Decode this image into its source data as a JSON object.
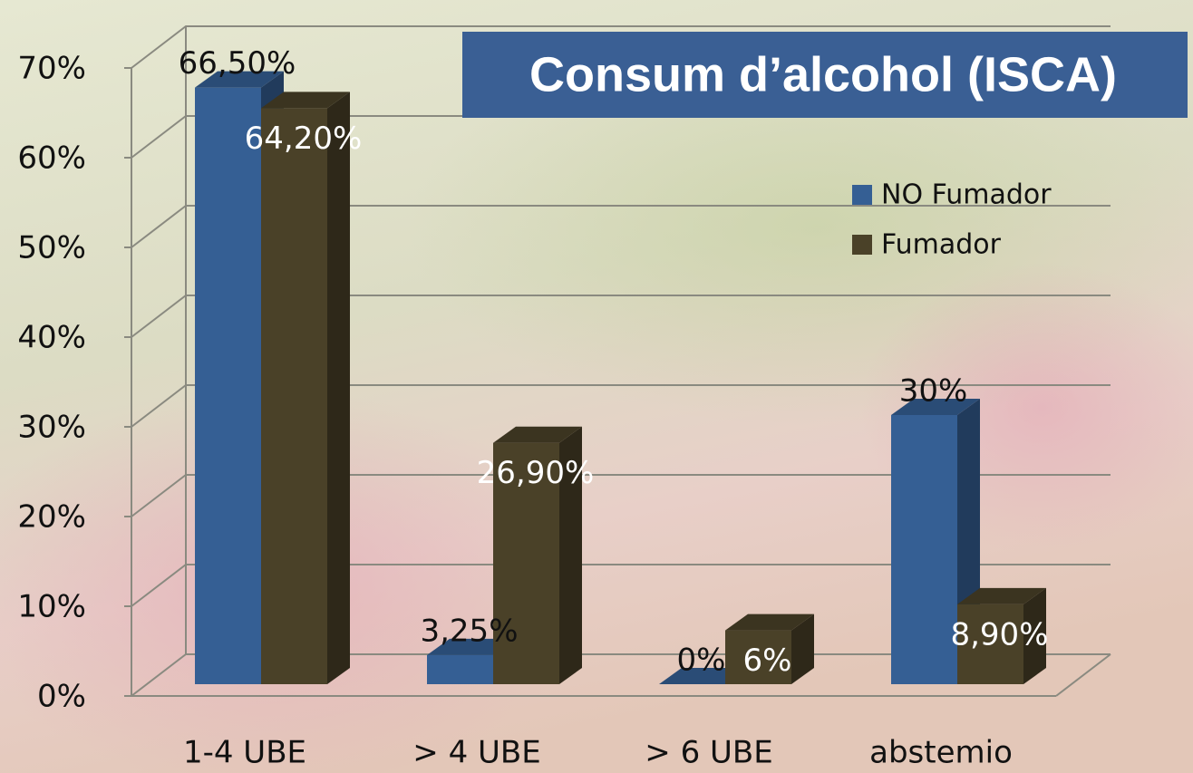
{
  "chart_data": {
    "type": "bar3d",
    "title": "Consum d’alcohol (ISCA)",
    "categories": [
      "1-4 UBE",
      "> 4 UBE",
      "> 6 UBE",
      "abstemio"
    ],
    "series": [
      {
        "name": "NO Fumador",
        "color": "#355f94",
        "values": [
          66.5,
          3.25,
          0,
          30
        ],
        "value_labels": [
          "66,50%",
          "3,25%",
          "0%",
          "30%"
        ]
      },
      {
        "name": "Fumador",
        "color": "#4a4128",
        "values": [
          64.2,
          26.9,
          6,
          8.9
        ],
        "value_labels": [
          "64,20%",
          "26,90%",
          "6%",
          "8,90%"
        ]
      }
    ],
    "ylim": [
      0,
      70
    ],
    "yticks": [
      {
        "value": 0,
        "label": "0%"
      },
      {
        "value": 10,
        "label": "10%"
      },
      {
        "value": 20,
        "label": "20%"
      },
      {
        "value": 30,
        "label": "30%"
      },
      {
        "value": 40,
        "label": "40%"
      },
      {
        "value": 50,
        "label": "50%"
      },
      {
        "value": 60,
        "label": "60%"
      },
      {
        "value": 70,
        "label": "70%"
      }
    ],
    "grid": true,
    "legend": "right"
  }
}
